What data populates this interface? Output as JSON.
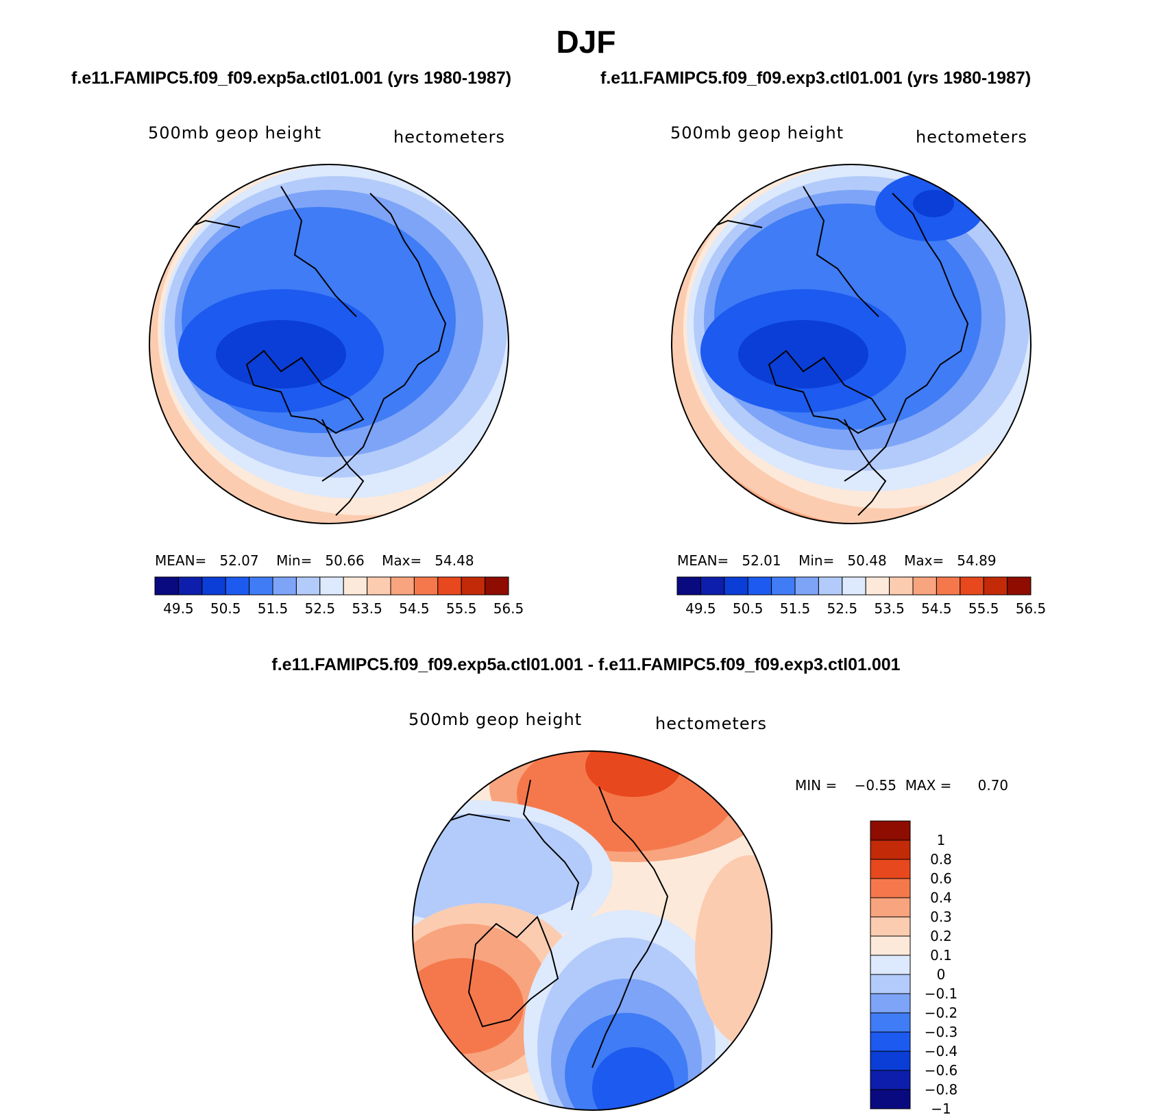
{
  "title": "DJF",
  "panels": [
    {
      "case_title": "f.e11.FAMIPC5.f09_f09.exp5a.ctl01.001 (yrs 1980-1987)",
      "variable": "500mb geop height",
      "units": "hectometers",
      "stats": {
        "mean_label": "MEAN=",
        "mean": "52.07",
        "min_label": "Min=",
        "min": "50.66",
        "max_label": "Max=",
        "max": "54.48"
      }
    },
    {
      "case_title": "f.e11.FAMIPC5.f09_f09.exp3.ctl01.001 (yrs 1980-1987)",
      "variable": "500mb geop height",
      "units": "hectometers",
      "stats": {
        "mean_label": "MEAN=",
        "mean": "52.01",
        "min_label": "Min=",
        "min": "50.48",
        "max_label": "Max=",
        "max": "54.89"
      }
    }
  ],
  "diff_panel": {
    "case_title": "f.e11.FAMIPC5.f09_f09.exp5a.ctl01.001 - f.e11.FAMIPC5.f09_f09.exp3.ctl01.001",
    "variable": "500mb geop height",
    "units": "hectometers",
    "stats": {
      "min_label": "MIN =",
      "min": "−0.55",
      "max_label": "MAX =",
      "max": "0.70"
    }
  },
  "colorbar_abs": {
    "colors": [
      "#0a0a80",
      "#0c1eab",
      "#0a3ed6",
      "#1c5af0",
      "#3f7cf5",
      "#7ea4f7",
      "#b3cbfa",
      "#dde9fc",
      "#fde9d9",
      "#fcccb0",
      "#f8a47e",
      "#f5784c",
      "#e8481e",
      "#c22a08",
      "#8f0c00"
    ],
    "ticks": [
      "49.5",
      "50.5",
      "51.5",
      "52.5",
      "53.5",
      "54.5",
      "55.5",
      "56.5"
    ]
  },
  "colorbar_diff": {
    "colors": [
      "#0a0a80",
      "#0c1eab",
      "#0a3ed6",
      "#1c5af0",
      "#3f7cf5",
      "#7ea4f7",
      "#b3cbfa",
      "#dde9fc",
      "#fde9d9",
      "#fcccb0",
      "#f8a47e",
      "#f5784c",
      "#e8481e",
      "#c22a08",
      "#8f0c00"
    ],
    "ticks": [
      "1",
      "0.8",
      "0.6",
      "0.4",
      "0.3",
      "0.2",
      "0.1",
      "0",
      "−0.1",
      "−0.2",
      "−0.3",
      "−0.4",
      "−0.6",
      "−0.8",
      "−1"
    ]
  }
}
